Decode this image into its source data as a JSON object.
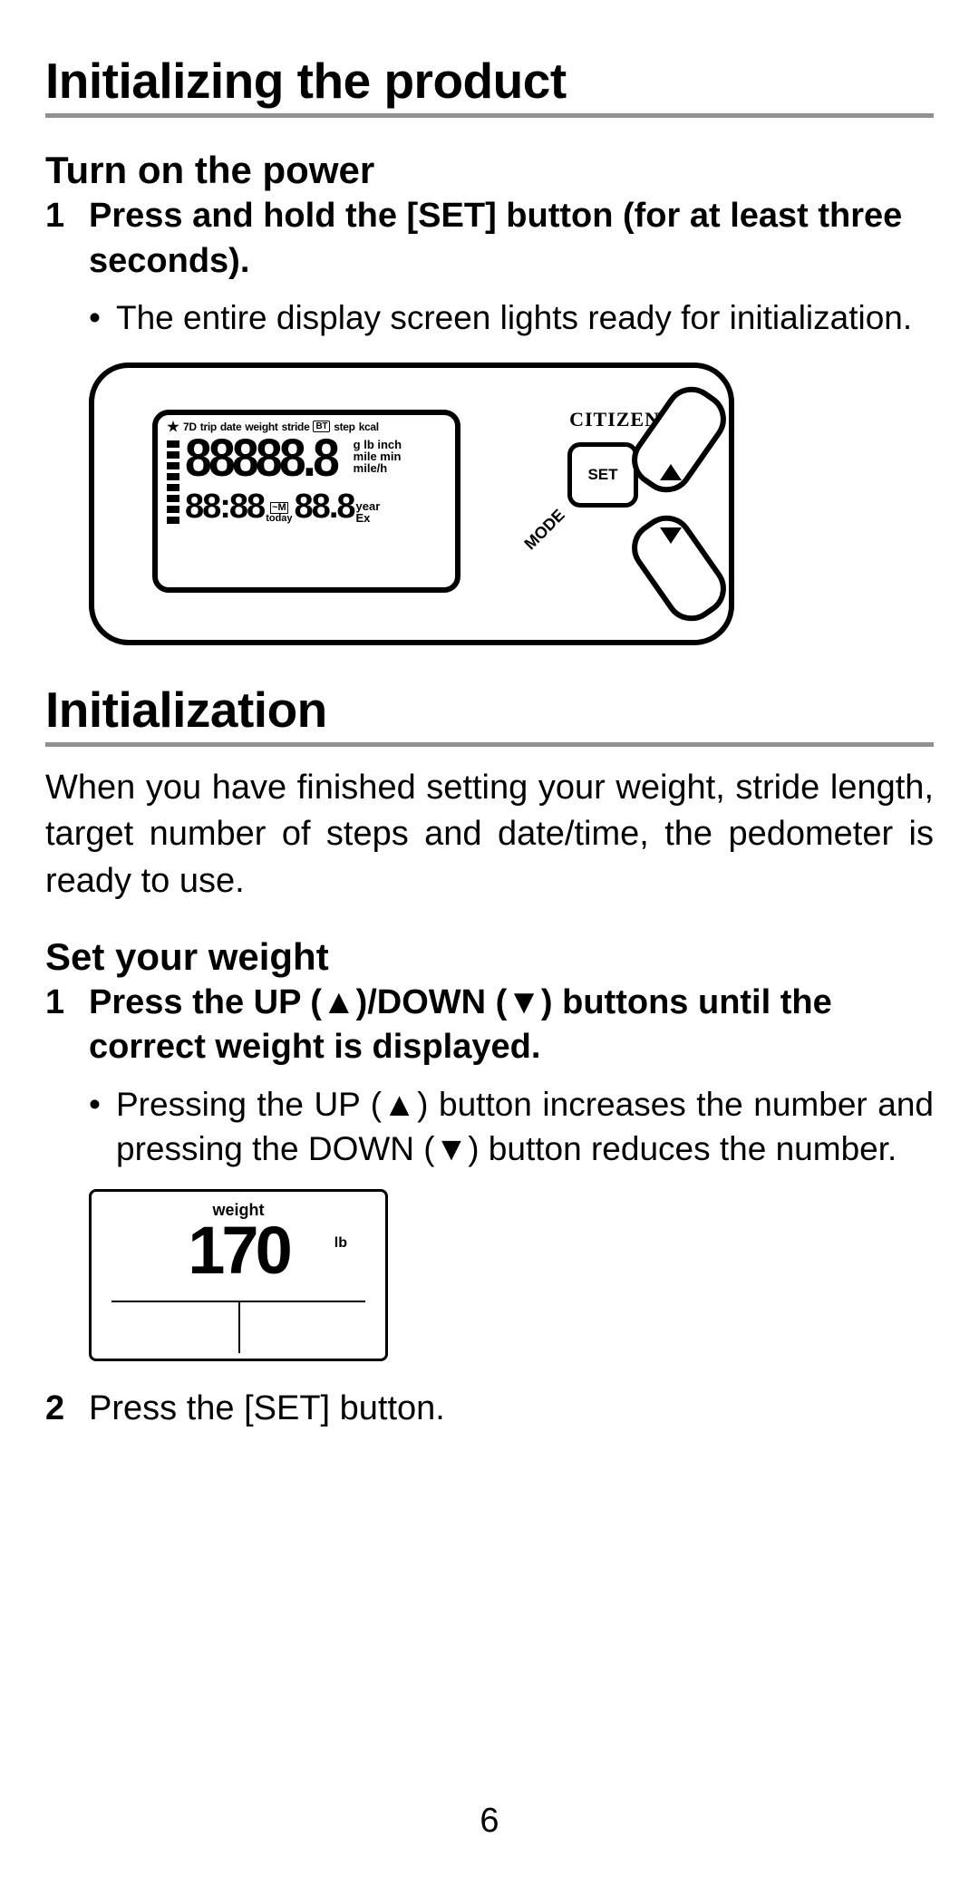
{
  "page_number": "6",
  "section1": {
    "title": "Initializing the product",
    "sub": "Turn on the power",
    "step1_num": "1",
    "step1_text": "Press and hold the [SET] button (for at least three seconds).",
    "note1_bullet": "•",
    "note1_text": "The entire display screen lights ready for initialization."
  },
  "device": {
    "brand": "CITIZEN",
    "set_label": "SET",
    "mode_label": "MODE",
    "lcd_top_tokens": [
      "7D",
      "trip",
      "date",
      "weight",
      "stride",
      "BT",
      "step",
      "kcal"
    ],
    "seg_main": "88888.8",
    "units_right": [
      "g lb inch",
      "mile min",
      "mile/h"
    ],
    "seg_time": "88:88",
    "mid_top": "~M",
    "mid_bottom": "today",
    "seg_secondary": "88.8",
    "units_right2": [
      "year",
      "Ex"
    ]
  },
  "section2": {
    "title": "Initialization",
    "intro": "When you have finished setting your weight, stride length, target number of steps and date/time, the pedometer is ready to use.",
    "sub": "Set your weight",
    "step1_num": "1",
    "step1_text": "Press the UP (▲)/DOWN (▼) buttons until the correct weight is displayed.",
    "note1_bullet": "•",
    "note1_text": "Pressing the UP (▲) button increases the number and pressing the DOWN (▼) button reduces the number.",
    "step2_num": "2",
    "step2_text": "Press the [SET] button."
  },
  "weight_display": {
    "label": "weight",
    "value": "170",
    "unit": "lb"
  }
}
